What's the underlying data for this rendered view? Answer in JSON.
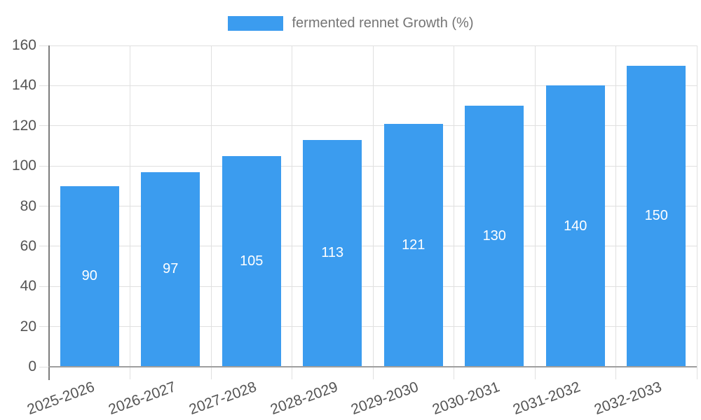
{
  "chart_data": {
    "type": "bar",
    "title": "",
    "xlabel": "",
    "ylabel": "",
    "legend": {
      "position": "top",
      "label": "fermented rennet Growth (%)"
    },
    "categories": [
      "2025-2026",
      "2026-2027",
      "2027-2028",
      "2028-2029",
      "2029-2030",
      "2030-2031",
      "2031-2032",
      "2032-2033"
    ],
    "series": [
      {
        "name": "fermented rennet Growth (%)",
        "values": [
          90,
          97,
          105,
          113,
          121,
          130,
          140,
          150
        ]
      }
    ],
    "value_labels_shown": true,
    "ylim": [
      0,
      160
    ],
    "ytick_step": 20,
    "yticks": [
      0,
      20,
      40,
      60,
      80,
      100,
      120,
      140,
      160
    ],
    "grid": true,
    "x_label_rotation_deg": -20,
    "colors": {
      "bar": "#3B9CEF",
      "grid": "#E0E0E0",
      "y_axis": "#7D7D7D",
      "x_axis": "#9E9E9E",
      "tick_label": "#545454",
      "legend_text": "#757575",
      "value_label": "#FFFFFF",
      "background": "#FFFFFF"
    }
  }
}
